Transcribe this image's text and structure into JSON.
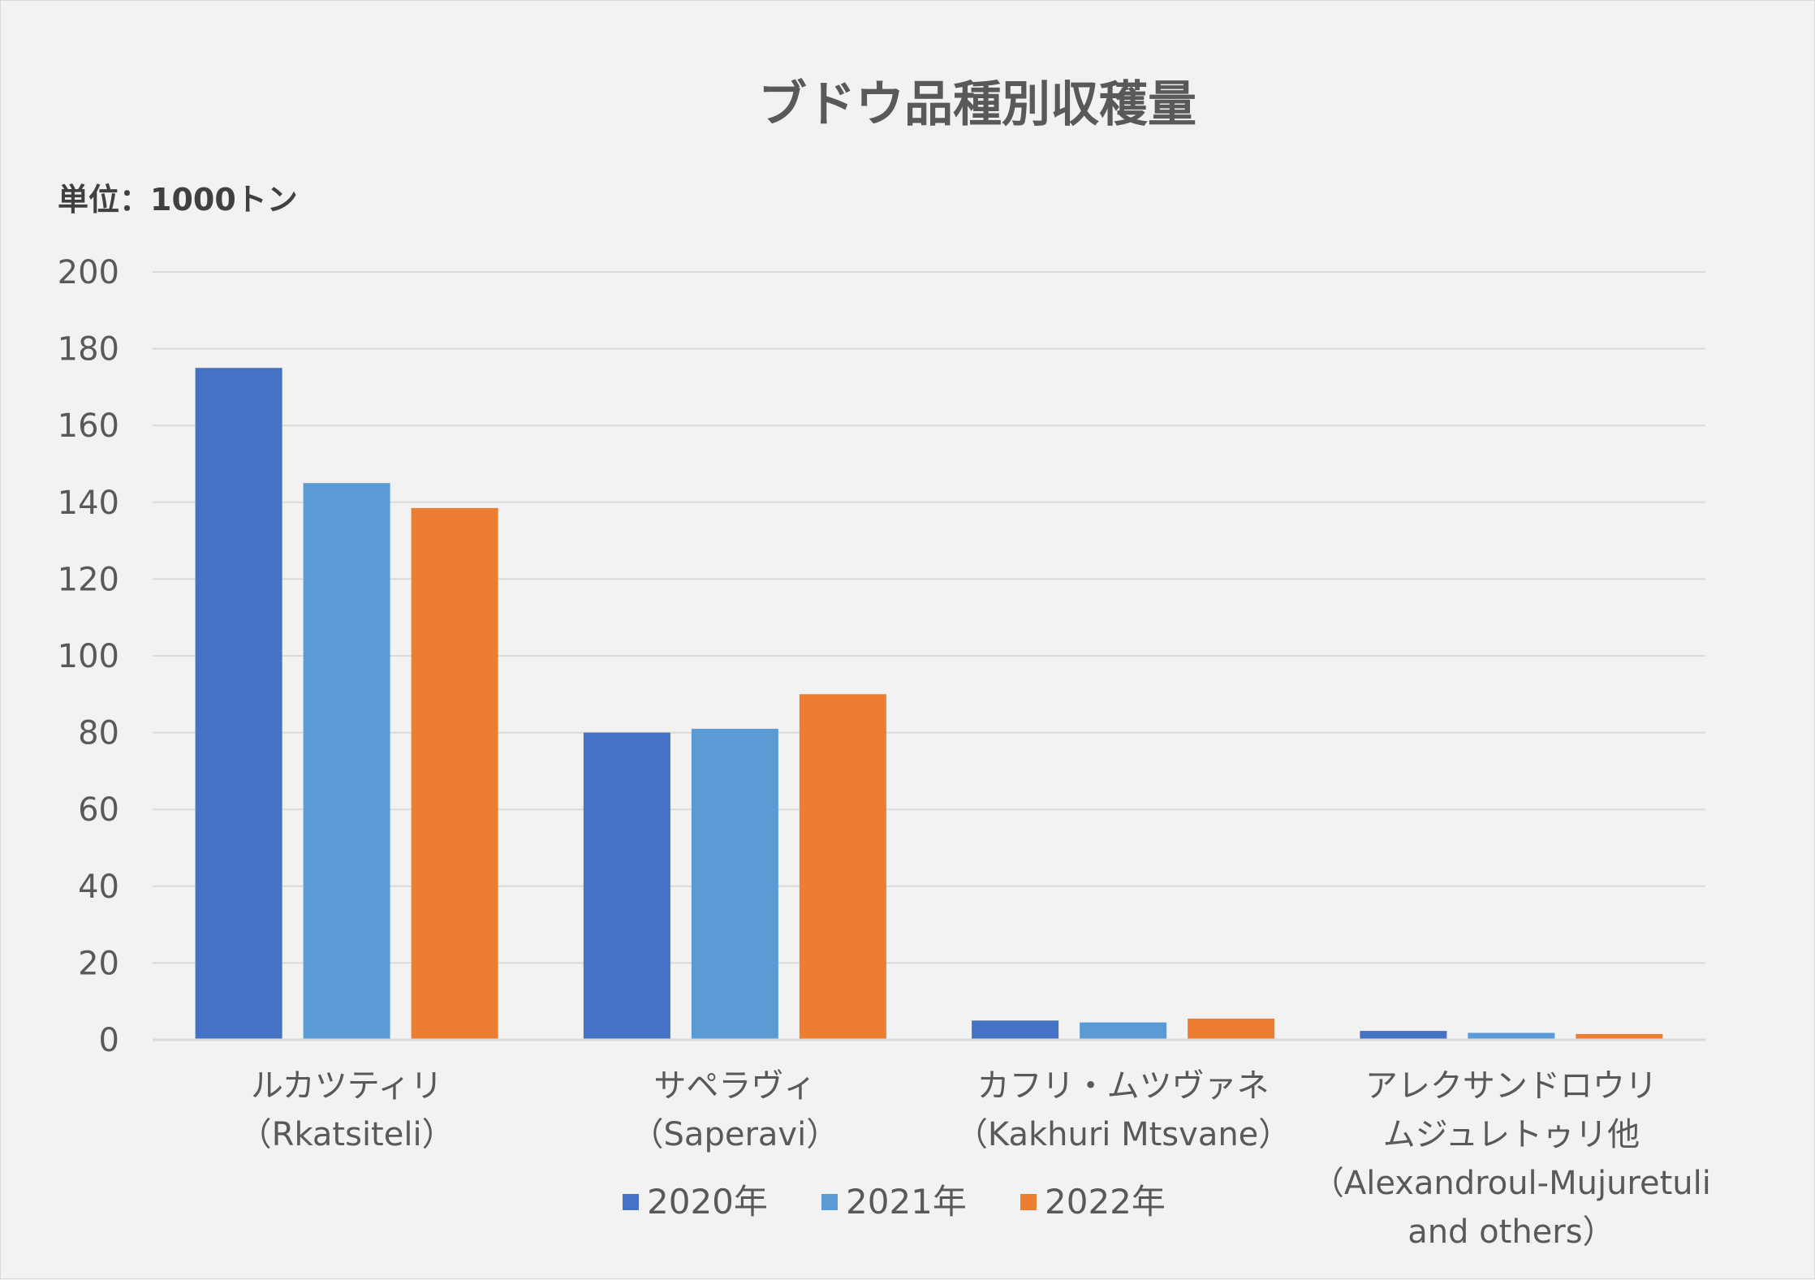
{
  "chart_data": {
    "type": "bar",
    "title": "ブドウ品種別収穫量",
    "unit_label": "単位：1000トン",
    "ylim": [
      0,
      200
    ],
    "yticks": [
      0,
      20,
      40,
      60,
      80,
      100,
      120,
      140,
      160,
      180,
      200
    ],
    "grid": true,
    "legend_position": "bottom",
    "categories": [
      [
        "ルカツティリ",
        "（Rkatsiteli）"
      ],
      [
        "サペラヴィ",
        "（Saperavi）"
      ],
      [
        "カフリ・ムツヴァネ",
        "（Kakhuri Mtsvane）"
      ],
      [
        "アレクサンドロウリ",
        "ムジュレトゥリ他",
        "（Alexandroul-Mujuretuli",
        "and others）"
      ]
    ],
    "series": [
      {
        "name": "2020年",
        "color": "#4472c4",
        "values": [
          175,
          80,
          5,
          2.3
        ]
      },
      {
        "name": "2021年",
        "color": "#5b9bd5",
        "values": [
          145,
          81,
          4.5,
          1.8
        ]
      },
      {
        "name": "2022年",
        "color": "#ed7d31",
        "values": [
          138.5,
          90,
          5.5,
          1.5
        ]
      }
    ]
  }
}
